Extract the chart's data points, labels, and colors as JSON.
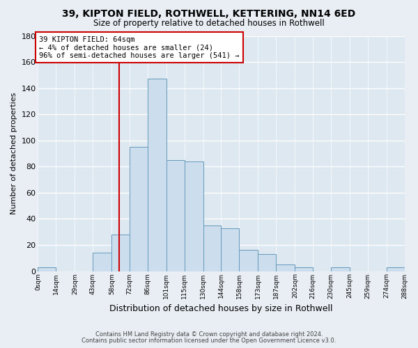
{
  "title": "39, KIPTON FIELD, ROTHWELL, KETTERING, NN14 6ED",
  "subtitle": "Size of property relative to detached houses in Rothwell",
  "xlabel": "Distribution of detached houses by size in Rothwell",
  "ylabel": "Number of detached properties",
  "bar_color": "#ccdded",
  "bar_edge_color": "#6699bb",
  "background_color": "#e8eef4",
  "plot_bg_color": "#dde8f0",
  "grid_color": "#ffffff",
  "bin_edges": [
    0,
    14,
    29,
    43,
    58,
    72,
    86,
    101,
    115,
    130,
    144,
    158,
    173,
    187,
    202,
    216,
    230,
    245,
    259,
    274,
    288
  ],
  "bar_heights": [
    3,
    0,
    0,
    14,
    28,
    95,
    147,
    85,
    84,
    35,
    33,
    16,
    13,
    5,
    3,
    0,
    3,
    0,
    0,
    3
  ],
  "tick_labels": [
    "0sqm",
    "14sqm",
    "29sqm",
    "43sqm",
    "58sqm",
    "72sqm",
    "86sqm",
    "101sqm",
    "115sqm",
    "130sqm",
    "144sqm",
    "158sqm",
    "173sqm",
    "187sqm",
    "202sqm",
    "216sqm",
    "230sqm",
    "245sqm",
    "259sqm",
    "274sqm",
    "288sqm"
  ],
  "vline_x": 64,
  "vline_color": "#cc0000",
  "annotation_line1": "39 KIPTON FIELD: 64sqm",
  "annotation_line2": "← 4% of detached houses are smaller (24)",
  "annotation_line3": "96% of semi-detached houses are larger (541) →",
  "annotation_box_color": "#ffffff",
  "annotation_box_edge": "#cc0000",
  "ylim": [
    0,
    180
  ],
  "yticks": [
    0,
    20,
    40,
    60,
    80,
    100,
    120,
    140,
    160,
    180
  ],
  "footer1": "Contains HM Land Registry data © Crown copyright and database right 2024.",
  "footer2": "Contains public sector information licensed under the Open Government Licence v3.0."
}
